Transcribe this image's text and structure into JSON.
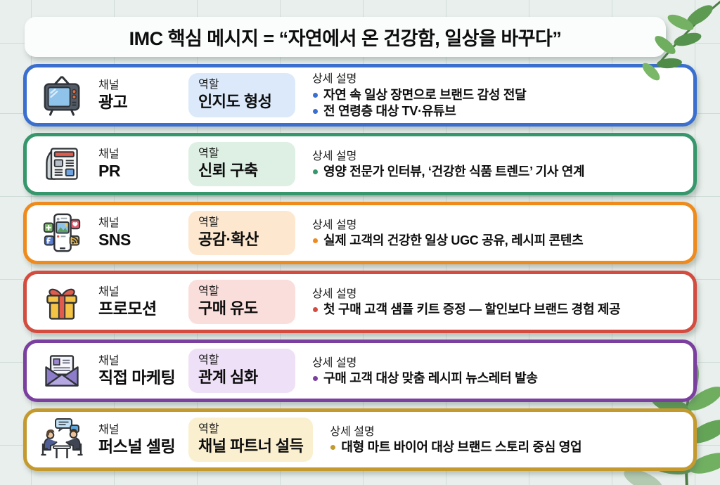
{
  "title": "IMC 핵심 메시지 = “자연에서 온 건강함, 일상을 바꾸다”",
  "labels": {
    "channel": "채널",
    "role": "역할",
    "detail": "상세 설명"
  },
  "rows": [
    {
      "icon": "tv-icon",
      "channel": "광고",
      "role": "인지도 형성",
      "bullets": [
        "자연 속 일상 장면으로 브랜드 감성 전달",
        "전 연령층 대상 TV·유튜브"
      ],
      "accent": "#3a6fd0",
      "badge_bg": "#dbe9fa"
    },
    {
      "icon": "newspaper-icon",
      "channel": "PR",
      "role": "신뢰 구축",
      "bullets": [
        "영양 전문가 인터뷰, ‘건강한 식품 트렌드’ 기사 연계"
      ],
      "accent": "#35976b",
      "badge_bg": "#def0e4"
    },
    {
      "icon": "smartphone-sns-icon",
      "channel": "SNS",
      "role": "공감·확산",
      "bullets": [
        "실제 고객의 건강한 일상 UGC 공유, 레시피 콘텐츠"
      ],
      "accent": "#ef8b1c",
      "badge_bg": "#fde8cf"
    },
    {
      "icon": "gift-icon",
      "channel": "프로모션",
      "role": "구매 유도",
      "bullets": [
        "첫 구매 고객 샘플 키트 증정 — 할인보다 브랜드 경험 제공"
      ],
      "accent": "#d44c3f",
      "badge_bg": "#fadedb"
    },
    {
      "icon": "envelope-icon",
      "channel": "직접 마케팅",
      "role": "관계 심화",
      "bullets": [
        "구매 고객 대상 맞춤 레시피 뉴스레터 발송"
      ],
      "accent": "#7b3fa0",
      "badge_bg": "#eee0f6"
    },
    {
      "icon": "meeting-icon",
      "channel": "퍼스널 셀링",
      "role": "채널 파트너 설득",
      "bullets": [
        "대형 마트 바이어 대상 브랜드 스토리 중심 영업"
      ],
      "accent": "#c49a2f",
      "badge_bg": "#faf0d0"
    }
  ],
  "decorations": {
    "leaf_green_dark": "#55924d",
    "leaf_green_light": "#74b163"
  }
}
